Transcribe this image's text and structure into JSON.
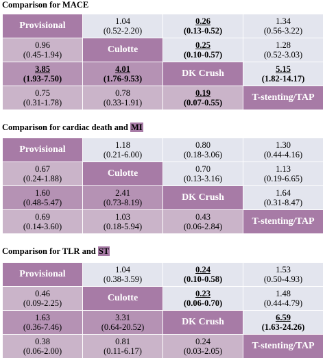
{
  "tables": [
    {
      "heading": {
        "prefix": "Comparison for MACE",
        "highlight": "",
        "suffix": ""
      },
      "rows": [
        [
          {
            "diag": "Provisional"
          },
          {
            "v": "1.04",
            "ci": "(0.52-2.20)"
          },
          {
            "v": "0.26",
            "ci": "(0.13-0.52)",
            "sig": true
          },
          {
            "v": "1.34",
            "ci": "(0.56-3.22)"
          }
        ],
        [
          {
            "v": "0.96",
            "ci": "(0.45-1.94)"
          },
          {
            "diag": "Culotte"
          },
          {
            "v": "0.25",
            "ci": "(0.10-0.57)",
            "sig": true
          },
          {
            "v": "1.28",
            "ci": "(0.52-3.03)"
          }
        ],
        [
          {
            "v": "3.85",
            "ci": "(1.93-7.50)",
            "sig": true
          },
          {
            "v": "4.01",
            "ci": "(1.76-9.53)",
            "sig": true
          },
          {
            "diag": "DK Crush"
          },
          {
            "v": "5.15",
            "ci": "(1.82-14.17)",
            "sig": true
          }
        ],
        [
          {
            "v": "0.75",
            "ci": "(0.31-1.78)"
          },
          {
            "v": "0.78",
            "ci": "(0.33-1.91)"
          },
          {
            "v": "0.19",
            "ci": "(0.07-0.55)",
            "sig": true
          },
          {
            "diag": "T-stenting/TAP"
          }
        ]
      ]
    },
    {
      "heading": {
        "prefix": "Comparison for cardiac death and ",
        "highlight": "MI",
        "suffix": ""
      },
      "rows": [
        [
          {
            "diag": "Provisional"
          },
          {
            "v": "1.18",
            "ci": "(0.21-6.00)"
          },
          {
            "v": "0.80",
            "ci": "(0.18-3.06)"
          },
          {
            "v": "1.30",
            "ci": "(0.44-4.16)"
          }
        ],
        [
          {
            "v": "0.67",
            "ci": "(0.24-1.88)"
          },
          {
            "diag": "Culotte"
          },
          {
            "v": "0.70",
            "ci": "(0.13-3.16)"
          },
          {
            "v": "1.13",
            "ci": "(0.19-6.65)"
          }
        ],
        [
          {
            "v": "1.60",
            "ci": "(0.48-5.47)"
          },
          {
            "v": "2.41",
            "ci": "(0.73-8.19)"
          },
          {
            "diag": "DK Crush"
          },
          {
            "v": "1.64",
            "ci": "(0.31-8.47)"
          }
        ],
        [
          {
            "v": "0.69",
            "ci": "(0.14-3.60)"
          },
          {
            "v": "1.03",
            "ci": "(0.18-5.94)"
          },
          {
            "v": "0.43",
            "ci": "(0.06-2.84)"
          },
          {
            "diag": "T-stenting/TAP"
          }
        ]
      ]
    },
    {
      "heading": {
        "prefix": "Comparison for TLR and ",
        "highlight": "ST",
        "suffix": ""
      },
      "rows": [
        [
          {
            "diag": "Provisional"
          },
          {
            "v": "1.04",
            "ci": "(0.38-3.59)"
          },
          {
            "v": "0.24",
            "ci": "(0.10-0.58)",
            "sig": true
          },
          {
            "v": "1.53",
            "ci": "(0.50-4.93)"
          }
        ],
        [
          {
            "v": "0.46",
            "ci": "(0.09-2.25)"
          },
          {
            "diag": "Culotte"
          },
          {
            "v": "0.23",
            "ci": "(0.06-0.70)",
            "sig": true
          },
          {
            "v": "1.48",
            "ci": "(0.44-4.79)"
          }
        ],
        [
          {
            "v": "1.63",
            "ci": "(0.36-7.46)"
          },
          {
            "v": "3.31",
            "ci": "(0.64-20.52)"
          },
          {
            "diag": "DK Crush"
          },
          {
            "v": "6.59",
            "ci": "(1.63-24.26)",
            "sig": true
          }
        ],
        [
          {
            "v": "0.38",
            "ci": "(0.06-2.00)"
          },
          {
            "v": "0.81",
            "ci": "(0.11-6.17)"
          },
          {
            "v": "0.24",
            "ci": "(0.03-2.05)"
          },
          {
            "diag": "T-stenting/TAP"
          }
        ]
      ]
    }
  ]
}
